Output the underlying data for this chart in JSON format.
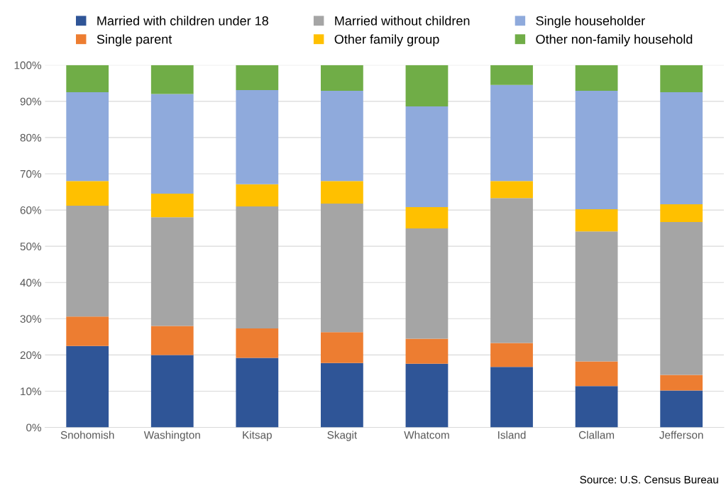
{
  "chart_data": {
    "type": "bar",
    "stacked": true,
    "categories": [
      "Snohomish",
      "Washington",
      "Kitsap",
      "Skagit",
      "Whatcom",
      "Island",
      "Clallam",
      "Jefferson"
    ],
    "series": [
      {
        "name": "Married with children under 18",
        "color": "#2f5597",
        "values": [
          22.5,
          20.0,
          19.2,
          17.8,
          17.6,
          16.7,
          11.4,
          10.2
        ]
      },
      {
        "name": "Single parent",
        "color": "#ed7d31",
        "values": [
          8.1,
          8.0,
          8.1,
          8.5,
          6.9,
          6.6,
          6.8,
          4.3
        ]
      },
      {
        "name": "Married without children",
        "color": "#a5a5a5",
        "values": [
          30.6,
          30.0,
          33.7,
          35.5,
          30.4,
          40.0,
          35.9,
          42.2
        ]
      },
      {
        "name": "Other family group",
        "color": "#ffc000",
        "values": [
          6.8,
          6.5,
          6.1,
          6.2,
          5.9,
          4.7,
          6.1,
          4.9
        ]
      },
      {
        "name": "Single householder",
        "color": "#8faadc",
        "values": [
          24.5,
          27.5,
          26.0,
          24.9,
          27.8,
          26.5,
          32.7,
          30.9
        ]
      },
      {
        "name": "Other non-family household",
        "color": "#70ad47",
        "values": [
          7.5,
          8.0,
          6.9,
          7.1,
          11.4,
          5.5,
          7.1,
          7.5
        ]
      }
    ],
    "ylim": [
      0,
      100
    ],
    "yticks": [
      {
        "value": 0,
        "label": "0%"
      },
      {
        "value": 10,
        "label": "10%"
      },
      {
        "value": 20,
        "label": "20%"
      },
      {
        "value": 30,
        "label": "30%"
      },
      {
        "value": 40,
        "label": "40%"
      },
      {
        "value": 50,
        "label": "50%"
      },
      {
        "value": 60,
        "label": "60%"
      },
      {
        "value": 70,
        "label": "70%"
      },
      {
        "value": 80,
        "label": "80%"
      },
      {
        "value": 90,
        "label": "90%"
      },
      {
        "value": 100,
        "label": "100%"
      }
    ],
    "grid": "y",
    "legend": "top",
    "annotations": [
      "Source: U.S. Census Bureau"
    ]
  }
}
